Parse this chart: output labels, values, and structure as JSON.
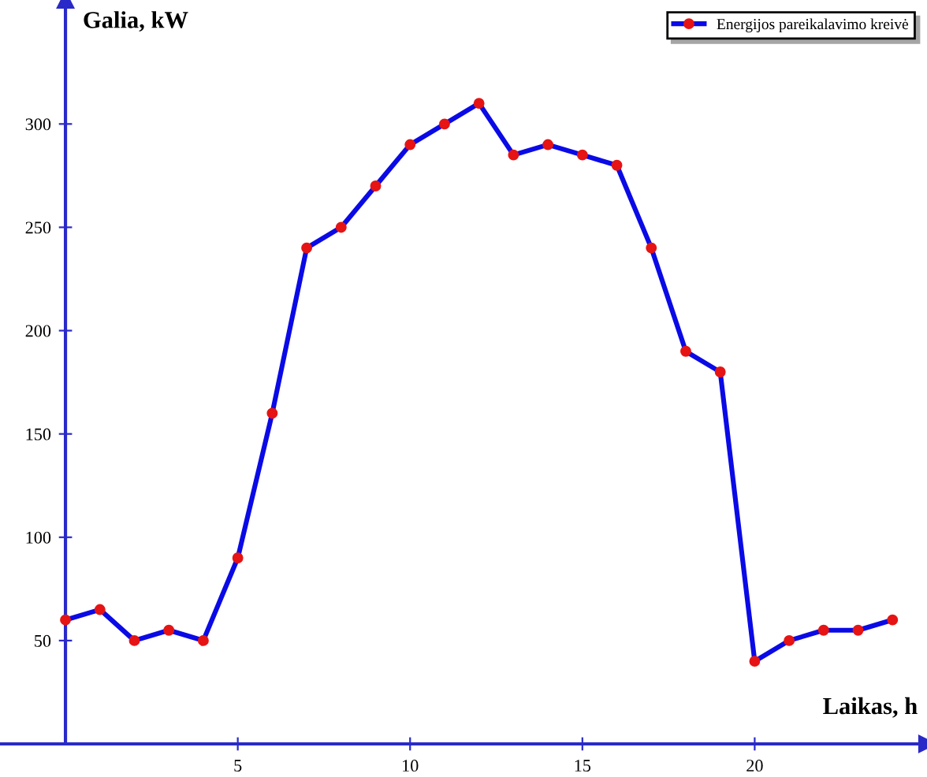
{
  "chart_data": {
    "type": "line",
    "xlabel": "Laikas, h",
    "ylabel": "Galia, kW",
    "x": [
      0,
      1,
      2,
      3,
      4,
      5,
      6,
      7,
      8,
      9,
      10,
      11,
      12,
      13,
      14,
      15,
      16,
      17,
      18,
      19,
      20,
      21,
      22,
      23,
      24
    ],
    "series": [
      {
        "name": "Energijos pareikalavimo kreivė",
        "color": "#0a0ae6",
        "colors": [
          "#e61414",
          "#e61414",
          "#e61414",
          "#e61414",
          "#e61414",
          "#e61414",
          "#e61414",
          "#e61414",
          "#e61414",
          "#e61414",
          "#e61414",
          "#e61414",
          "#e61414",
          "#e61414",
          "#e61414",
          "#e61414",
          "#e61414",
          "#e61414",
          "#e61414",
          "#e61414",
          "#e61414",
          "#e61414",
          "#e61414",
          "#e61414",
          "#e61414"
        ],
        "values": [
          60,
          65,
          50,
          55,
          50,
          90,
          160,
          240,
          250,
          270,
          290,
          300,
          310,
          285,
          290,
          285,
          280,
          240,
          190,
          180,
          40,
          50,
          55,
          55,
          60
        ]
      }
    ],
    "xlim": [
      -1.9,
      25
    ],
    "ylim": [
      0,
      360
    ],
    "xticks": [
      5,
      10,
      15,
      20
    ],
    "yticks": [
      50,
      100,
      150,
      200,
      250,
      300
    ],
    "marker": "circle",
    "line_style": "solid",
    "grid": false,
    "legend": "top right"
  }
}
